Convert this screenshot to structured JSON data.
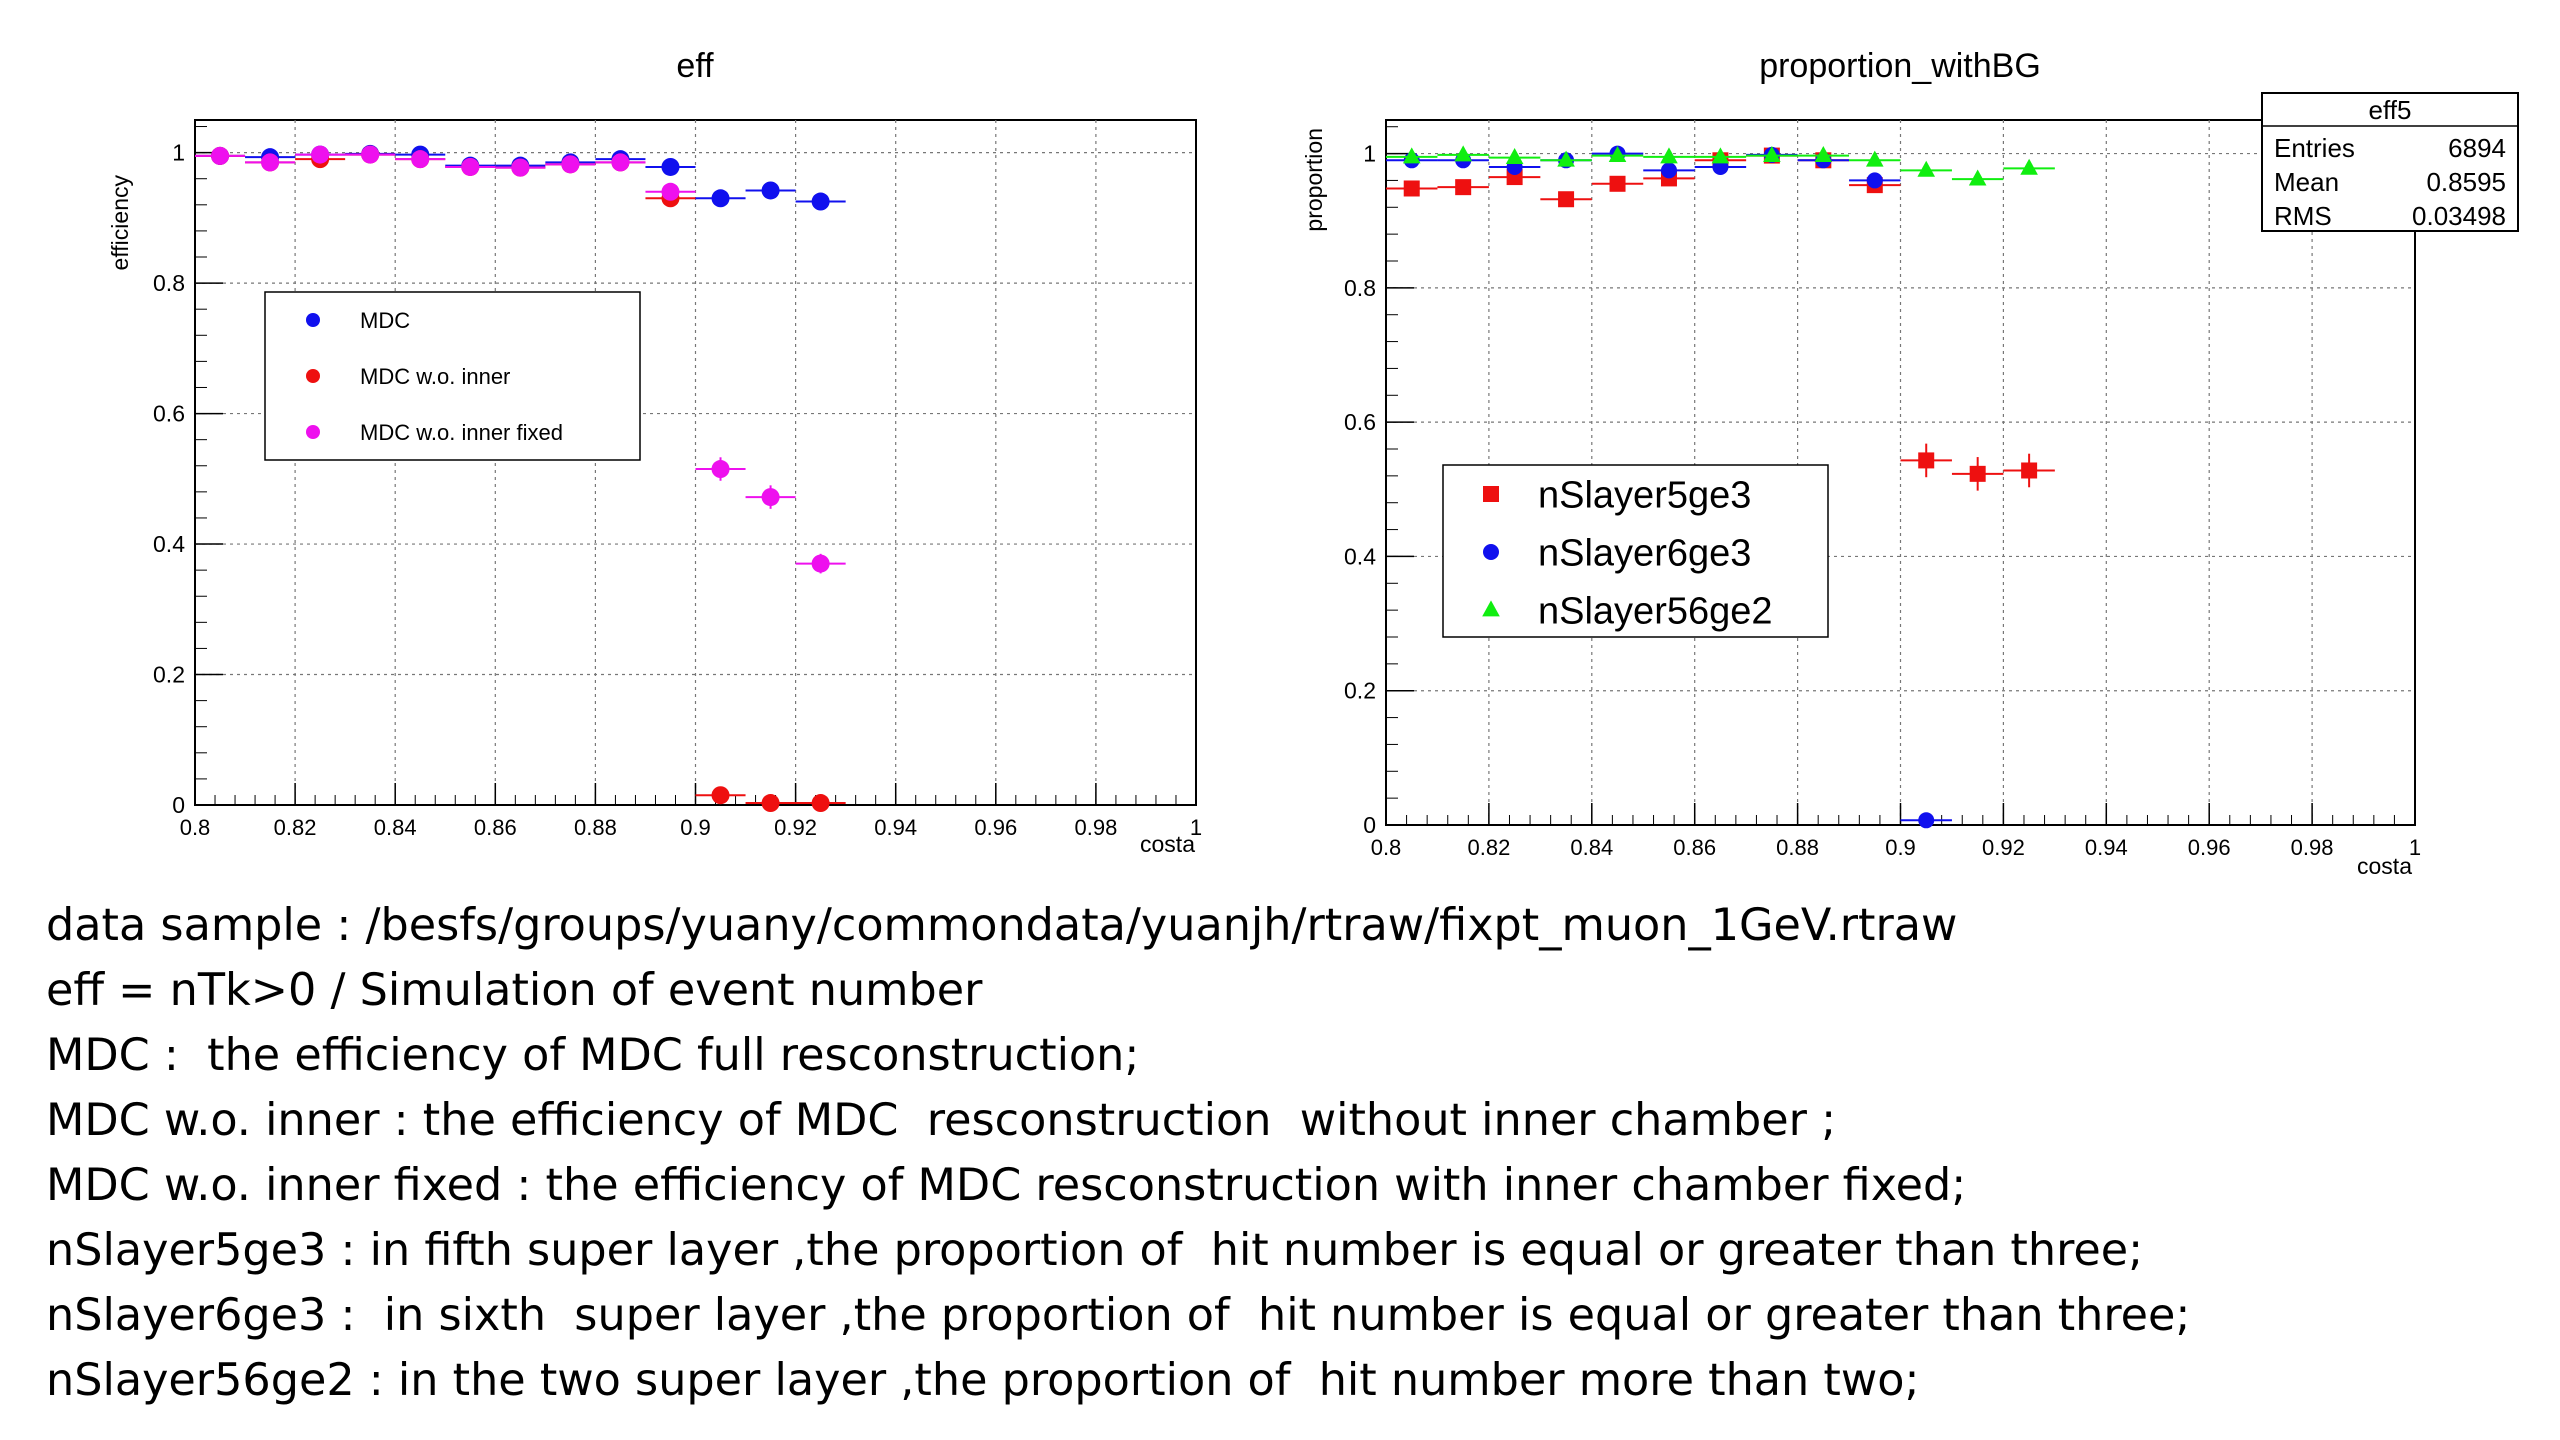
{
  "chart_data": [
    {
      "type": "scatter",
      "title": "eff",
      "xlabel": "costa",
      "ylabel": "efficiency",
      "xlim": [
        0.8,
        1.0
      ],
      "ylim": [
        0,
        1.05
      ],
      "grid": true,
      "xticks": [
        "0.8",
        "0.82",
        "0.84",
        "0.86",
        "0.88",
        "0.9",
        "0.92",
        "0.94",
        "0.96",
        "0.98",
        "1"
      ],
      "yticks": [
        "0",
        "0.2",
        "0.4",
        "0.6",
        "0.8",
        "1"
      ],
      "legend_position": "middle-left",
      "series": [
        {
          "name": "MDC",
          "color": "#1010ee",
          "x": [
            0.805,
            0.815,
            0.825,
            0.835,
            0.845,
            0.855,
            0.865,
            0.875,
            0.885,
            0.895,
            0.905,
            0.915,
            0.925
          ],
          "y": [
            0.995,
            0.993,
            0.997,
            0.998,
            0.997,
            0.98,
            0.98,
            0.985,
            0.99,
            0.978,
            0.93,
            0.942,
            0.925
          ]
        },
        {
          "name": "MDC w.o. inner",
          "color": "#ee1010",
          "x": [
            0.805,
            0.815,
            0.825,
            0.835,
            0.845,
            0.855,
            0.865,
            0.875,
            0.885,
            0.895,
            0.905,
            0.915,
            0.925
          ],
          "y": [
            0.995,
            0.985,
            0.99,
            0.997,
            0.99,
            0.978,
            0.977,
            0.982,
            0.985,
            0.93,
            0.015,
            0.003,
            0.003
          ]
        },
        {
          "name": "MDC w.o. inner fixed",
          "color": "#ee10ee",
          "x": [
            0.805,
            0.815,
            0.825,
            0.835,
            0.845,
            0.855,
            0.865,
            0.875,
            0.885,
            0.895,
            0.905,
            0.915,
            0.925
          ],
          "y": [
            0.995,
            0.985,
            0.997,
            0.997,
            0.99,
            0.978,
            0.977,
            0.982,
            0.985,
            0.94,
            0.515,
            0.472,
            0.37
          ],
          "yerr": [
            0,
            0,
            0,
            0,
            0,
            0,
            0,
            0,
            0,
            0,
            0.018,
            0.018,
            0.015
          ]
        }
      ]
    },
    {
      "type": "scatter",
      "title": "proportion_withBG",
      "xlabel": "costa",
      "ylabel": "proportion",
      "xlim": [
        0.8,
        1.0
      ],
      "ylim": [
        0,
        1.05
      ],
      "grid": true,
      "xticks": [
        "0.8",
        "0.82",
        "0.84",
        "0.86",
        "0.88",
        "0.9",
        "0.92",
        "0.94",
        "0.96",
        "0.98",
        "1"
      ],
      "yticks": [
        "0",
        "0.2",
        "0.4",
        "0.6",
        "0.8",
        "1"
      ],
      "legend_position": "middle-left",
      "stats": {
        "title": "eff5",
        "rows": [
          {
            "label": "Entries",
            "value": "6894"
          },
          {
            "label": "Mean",
            "value": "0.8595"
          },
          {
            "label": "RMS",
            "value": "0.03498"
          }
        ]
      },
      "series": [
        {
          "name": "nSlayer5ge3",
          "color": "#ee1010",
          "marker": "square",
          "x": [
            0.805,
            0.815,
            0.825,
            0.835,
            0.845,
            0.855,
            0.865,
            0.875,
            0.885,
            0.895,
            0.905,
            0.915,
            0.925
          ],
          "y": [
            0.948,
            0.95,
            0.965,
            0.932,
            0.955,
            0.963,
            0.99,
            0.997,
            0.99,
            0.953,
            0.543,
            0.523,
            0.528
          ],
          "yerr": [
            0,
            0,
            0,
            0,
            0,
            0,
            0,
            0,
            0,
            0,
            0.025,
            0.025,
            0.025
          ]
        },
        {
          "name": "nSlayer6ge3",
          "color": "#1010ee",
          "marker": "circle",
          "x": [
            0.805,
            0.815,
            0.825,
            0.835,
            0.845,
            0.855,
            0.865,
            0.875,
            0.885,
            0.895,
            0.905
          ],
          "y": [
            0.99,
            0.99,
            0.98,
            0.99,
            1.0,
            0.975,
            0.98,
            0.998,
            0.99,
            0.96,
            0.007
          ]
        },
        {
          "name": "nSlayer56ge2",
          "color": "#10ee10",
          "marker": "triangle",
          "x": [
            0.805,
            0.815,
            0.825,
            0.835,
            0.845,
            0.855,
            0.865,
            0.875,
            0.885,
            0.895,
            0.905,
            0.915,
            0.925
          ],
          "y": [
            0.995,
            0.998,
            0.994,
            0.99,
            0.997,
            0.995,
            0.995,
            0.997,
            0.997,
            0.99,
            0.975,
            0.962,
            0.978
          ]
        }
      ]
    }
  ],
  "notes": [
    "data sample : /besfs/groups/yuany/commondata/yuanjh/rtraw/fixpt_muon_1GeV.rtraw",
    "eff = nTk>0 / Simulation of event number",
    "MDC :  the efficiency of MDC full resconstruction;",
    "MDC w.o. inner : the efficiency of MDC  resconstruction  without inner chamber ;",
    "MDC w.o. inner fixed : the efficiency of MDC resconstruction with inner chamber fixed;",
    "nSlayer5ge3 : in fifth super layer ,the proportion of  hit number is equal or greater than three;",
    "nSlayer6ge3 :  in sixth  super layer ,the proportion of  hit number is equal or greater than three;",
    "nSlayer56ge2 : in the two super layer ,the proportion of  hit number more than two;"
  ]
}
